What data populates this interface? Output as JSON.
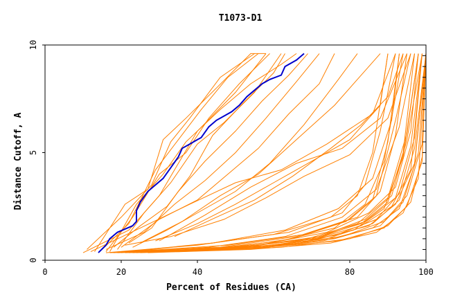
{
  "chart_data": {
    "type": "line",
    "title": "T1073-D1",
    "xlabel": "Percent of Residues (CA)",
    "ylabel": "Distance Cutoff, A",
    "xlim": [
      0,
      100
    ],
    "ylim": [
      0,
      10
    ],
    "x_ticks": [
      "0",
      "20",
      "40",
      "80",
      "100"
    ],
    "x_tick_values": [
      0,
      20,
      40,
      80,
      100
    ],
    "y_ticks": [
      "0",
      "5",
      "10"
    ],
    "y_tick_values": [
      0,
      5,
      10
    ],
    "grid": false,
    "colors": {
      "highlight": "#0000cc",
      "others": "#ff8000",
      "axes": "#000000"
    },
    "highlight_series": {
      "x": [
        14,
        16,
        17,
        19,
        21,
        23,
        24,
        24,
        25,
        27,
        29,
        31,
        33,
        35,
        36,
        38,
        40,
        41,
        43,
        45,
        47,
        49,
        51,
        53,
        55,
        57,
        59,
        62,
        63,
        66,
        68
      ],
      "y": [
        0.35,
        0.7,
        1.0,
        1.3,
        1.45,
        1.6,
        1.8,
        2.3,
        2.7,
        3.2,
        3.5,
        3.8,
        4.3,
        4.8,
        5.2,
        5.4,
        5.6,
        5.7,
        6.2,
        6.5,
        6.7,
        6.9,
        7.2,
        7.6,
        7.9,
        8.2,
        8.4,
        8.6,
        9.0,
        9.3,
        9.6
      ]
    },
    "group_a": [
      {
        "x": [
          10,
          22,
          30,
          36,
          40,
          50,
          58
        ],
        "y": [
          0.35,
          1.4,
          3.0,
          4.8,
          6.0,
          7.8,
          9.6
        ]
      },
      {
        "x": [
          11,
          20,
          28,
          33,
          38,
          46,
          55
        ],
        "y": [
          0.5,
          2.0,
          3.5,
          5.5,
          6.6,
          8.5,
          9.6
        ]
      },
      {
        "x": [
          13,
          21,
          27,
          31,
          37,
          45,
          54,
          58
        ],
        "y": [
          0.4,
          2.6,
          3.3,
          5.6,
          6.6,
          8.0,
          9.6,
          9.6
        ]
      },
      {
        "x": [
          15,
          22,
          29,
          35,
          41,
          48,
          56
        ],
        "y": [
          0.5,
          1.7,
          4.2,
          5.6,
          7.0,
          8.5,
          9.6
        ]
      },
      {
        "x": [
          16,
          23,
          30,
          37,
          43,
          51,
          59
        ],
        "y": [
          0.4,
          2.0,
          4.0,
          5.0,
          6.6,
          8.2,
          9.6
        ]
      },
      {
        "x": [
          18,
          25,
          32,
          38,
          44,
          52,
          60,
          63
        ],
        "y": [
          0.6,
          1.6,
          2.5,
          3.9,
          5.8,
          7.3,
          8.7,
          9.6
        ]
      },
      {
        "x": [
          17,
          24,
          31,
          37,
          46,
          54,
          62,
          66
        ],
        "y": [
          0.4,
          2.6,
          4.0,
          5.5,
          7.0,
          8.2,
          9.1,
          9.6
        ]
      },
      {
        "x": [
          19,
          26,
          33,
          40,
          47,
          55,
          62
        ],
        "y": [
          0.5,
          2.2,
          3.6,
          5.4,
          6.4,
          7.8,
          9.6
        ]
      },
      {
        "x": [
          22,
          28,
          35,
          42,
          50,
          57,
          64,
          69
        ],
        "y": [
          0.8,
          1.5,
          3.2,
          4.6,
          6.0,
          7.4,
          8.6,
          9.6
        ]
      },
      {
        "x": [
          16,
          26,
          34,
          42,
          50,
          58,
          66,
          72
        ],
        "y": [
          0.5,
          1.3,
          2.6,
          3.7,
          5.0,
          6.6,
          8.3,
          9.6
        ]
      },
      {
        "x": [
          20,
          30,
          40,
          48,
          56,
          64,
          72,
          76
        ],
        "y": [
          0.6,
          1.9,
          2.8,
          4.0,
          5.2,
          6.8,
          8.2,
          9.6
        ]
      },
      {
        "x": [
          23,
          32,
          41,
          50,
          59,
          68,
          77,
          82
        ],
        "y": [
          0.6,
          1.4,
          2.3,
          3.2,
          4.5,
          6.3,
          8.4,
          9.6
        ]
      },
      {
        "x": [
          25,
          36,
          46,
          56,
          66,
          76,
          84,
          88
        ],
        "y": [
          0.8,
          1.8,
          3.0,
          4.0,
          5.6,
          7.2,
          8.8,
          9.6
        ]
      },
      {
        "x": [
          29,
          40,
          50,
          60,
          70,
          80,
          88,
          90
        ],
        "y": [
          0.9,
          1.7,
          2.6,
          3.6,
          4.6,
          5.6,
          7.2,
          9.6
        ]
      },
      {
        "x": [
          34,
          45,
          55,
          65,
          75,
          83,
          90,
          94
        ],
        "y": [
          1.1,
          2.0,
          2.8,
          3.9,
          5.2,
          6.3,
          7.6,
          9.6
        ]
      },
      {
        "x": [
          12,
          25,
          38,
          50,
          62,
          74,
          86,
          92
        ],
        "y": [
          0.4,
          1.5,
          2.6,
          3.6,
          4.2,
          5.4,
          6.8,
          9.6
        ]
      },
      {
        "x": [
          30,
          42,
          54,
          66,
          78,
          88,
          95
        ],
        "y": [
          0.9,
          2.1,
          3.4,
          4.5,
          5.2,
          6.6,
          9.6
        ]
      },
      {
        "x": [
          21,
          33,
          47,
          58,
          68,
          80,
          90,
          96
        ],
        "y": [
          0.7,
          1.1,
          1.9,
          2.9,
          3.9,
          4.9,
          6.6,
          9.6
        ]
      }
    ],
    "group_b": [
      {
        "x": [
          16,
          40,
          60,
          75,
          82,
          86,
          90
        ],
        "y": [
          0.35,
          0.7,
          1.2,
          2.0,
          3.0,
          5.0,
          9.6
        ]
      },
      {
        "x": [
          18,
          44,
          64,
          78,
          84,
          88,
          92
        ],
        "y": [
          0.35,
          0.8,
          1.3,
          2.2,
          3.5,
          6.0,
          9.6
        ]
      },
      {
        "x": [
          20,
          46,
          66,
          80,
          86,
          90,
          93
        ],
        "y": [
          0.4,
          0.6,
          1.1,
          1.9,
          2.8,
          5.5,
          9.6
        ]
      },
      {
        "x": [
          17,
          42,
          62,
          76,
          84,
          89,
          94
        ],
        "y": [
          0.35,
          0.5,
          0.9,
          1.5,
          2.6,
          4.6,
          9.6
        ]
      },
      {
        "x": [
          22,
          48,
          68,
          82,
          88,
          92,
          95
        ],
        "y": [
          0.4,
          0.7,
          1.2,
          2.0,
          3.2,
          5.8,
          9.6
        ]
      },
      {
        "x": [
          19,
          45,
          65,
          79,
          87,
          92,
          96
        ],
        "y": [
          0.35,
          0.5,
          1.0,
          1.8,
          3.0,
          6.5,
          9.6
        ]
      },
      {
        "x": [
          24,
          50,
          70,
          83,
          90,
          94,
          97
        ],
        "y": [
          0.4,
          0.6,
          1.0,
          1.7,
          2.7,
          5.0,
          9.6
        ]
      },
      {
        "x": [
          21,
          47,
          67,
          81,
          89,
          94,
          98
        ],
        "y": [
          0.35,
          0.5,
          0.8,
          1.4,
          2.4,
          4.8,
          9.6
        ]
      },
      {
        "x": [
          26,
          52,
          72,
          84,
          91,
          95,
          99
        ],
        "y": [
          0.4,
          0.6,
          1.1,
          1.9,
          3.0,
          5.6,
          9.6
        ]
      },
      {
        "x": [
          23,
          49,
          69,
          83,
          91,
          96,
          99
        ],
        "y": [
          0.35,
          0.5,
          0.9,
          1.6,
          2.5,
          4.2,
          9.6
        ]
      },
      {
        "x": [
          28,
          55,
          74,
          86,
          93,
          97,
          100
        ],
        "y": [
          0.4,
          0.6,
          1.0,
          1.7,
          2.8,
          5.2,
          9.6
        ]
      },
      {
        "x": [
          25,
          53,
          73,
          86,
          93,
          97,
          100
        ],
        "y": [
          0.35,
          0.5,
          0.9,
          1.5,
          2.4,
          4.4,
          9.6
        ]
      },
      {
        "x": [
          30,
          57,
          76,
          88,
          94,
          98,
          100
        ],
        "y": [
          0.4,
          0.6,
          1.0,
          1.6,
          2.7,
          5.0,
          9.6
        ]
      },
      {
        "x": [
          27,
          54,
          75,
          87,
          94,
          98,
          100
        ],
        "y": [
          0.35,
          0.5,
          0.8,
          1.3,
          2.2,
          3.8,
          9.6
        ]
      },
      {
        "x": [
          32,
          58,
          77,
          89,
          95,
          99,
          100
        ],
        "y": [
          0.4,
          0.6,
          0.9,
          1.5,
          2.5,
          4.6,
          9.6
        ]
      },
      {
        "x": [
          20,
          44,
          63,
          77,
          86,
          91,
          93
        ],
        "y": [
          0.35,
          0.8,
          1.4,
          2.4,
          3.8,
          6.5,
          9.6
        ]
      },
      {
        "x": [
          29,
          56,
          74,
          85,
          92,
          96,
          98
        ],
        "y": [
          0.4,
          0.7,
          1.3,
          2.2,
          3.4,
          6.0,
          9.6
        ]
      },
      {
        "x": [
          33,
          60,
          78,
          89,
          95,
          99,
          100
        ],
        "y": [
          0.45,
          0.7,
          1.1,
          1.8,
          3.0,
          5.4,
          9.6
        ]
      },
      {
        "x": [
          18,
          43,
          63,
          78,
          87,
          93,
          97
        ],
        "y": [
          0.35,
          0.6,
          1.1,
          2.0,
          3.3,
          6.2,
          9.6
        ]
      },
      {
        "x": [
          35,
          62,
          80,
          90,
          96,
          99,
          100
        ],
        "y": [
          0.4,
          0.6,
          1.0,
          1.6,
          2.7,
          4.8,
          9.6
        ]
      },
      {
        "x": [
          24,
          51,
          71,
          84,
          92,
          96,
          99
        ],
        "y": [
          0.35,
          0.6,
          1.0,
          1.8,
          2.9,
          5.3,
          9.6
        ]
      },
      {
        "x": [
          26,
          52,
          71,
          85,
          92,
          97,
          100
        ],
        "y": [
          0.4,
          0.55,
          0.95,
          1.6,
          2.6,
          4.5,
          9.6
        ]
      },
      {
        "x": [
          31,
          58,
          76,
          87,
          93,
          97,
          99
        ],
        "y": [
          0.4,
          0.65,
          1.15,
          1.9,
          3.1,
          5.7,
          9.6
        ]
      },
      {
        "x": [
          22,
          47,
          68,
          82,
          90,
          95,
          98
        ],
        "y": [
          0.35,
          0.55,
          0.95,
          1.7,
          2.9,
          5.9,
          9.6
        ]
      }
    ]
  }
}
